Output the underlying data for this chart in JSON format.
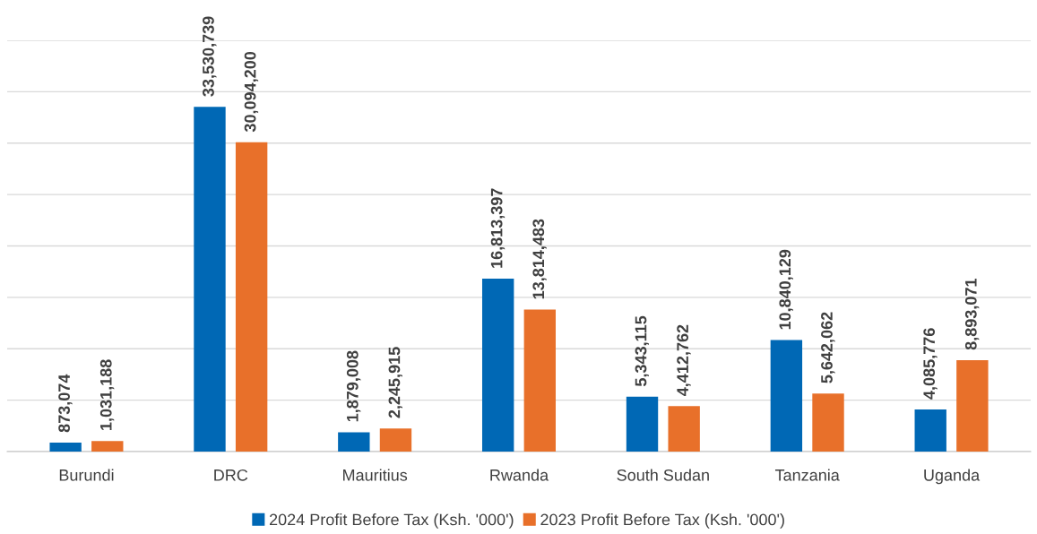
{
  "chart_data": {
    "type": "bar",
    "categories": [
      "Burundi",
      "DRC",
      "Mauritius",
      "Rwanda",
      "South Sudan",
      "Tanzania",
      "Uganda"
    ],
    "series": [
      {
        "name": "2024 Profit Before Tax (Ksh. '000')",
        "color": "#0068b5",
        "values": [
          873074,
          33530739,
          1879008,
          16813397,
          5343115,
          10840129,
          4085776
        ],
        "value_labels": [
          "873,074",
          "33,530,739",
          "1,879,008",
          "16,813,397",
          "5,343,115",
          "10,840,129",
          "4,085,776"
        ]
      },
      {
        "name": "2023 Profit Before Tax (Ksh. '000')",
        "color": "#e8702a",
        "values": [
          1031188,
          30094200,
          2245915,
          13814483,
          4412762,
          5642062,
          8893071
        ],
        "value_labels": [
          "1,031,188",
          "30,094,200",
          "2,245,915",
          "13,814,483",
          "4,412,762",
          "5,642,062",
          "8,893,071"
        ]
      }
    ],
    "ylim": [
      0,
      40000000
    ],
    "yticks": [
      {
        "value": 0,
        "label": null
      },
      {
        "value": 5000000,
        "label": null
      },
      {
        "value": 10000000,
        "label": null
      },
      {
        "value": 15000000,
        "label": null
      },
      {
        "value": 20000000,
        "label": null
      },
      {
        "value": 25000000,
        "label": null
      },
      {
        "value": 30000000,
        "label": null
      },
      {
        "value": 35000000,
        "label": null
      },
      {
        "value": 40000000,
        "label": null
      }
    ],
    "tick_labels": "x",
    "grid": "y",
    "legend": "bottom"
  }
}
